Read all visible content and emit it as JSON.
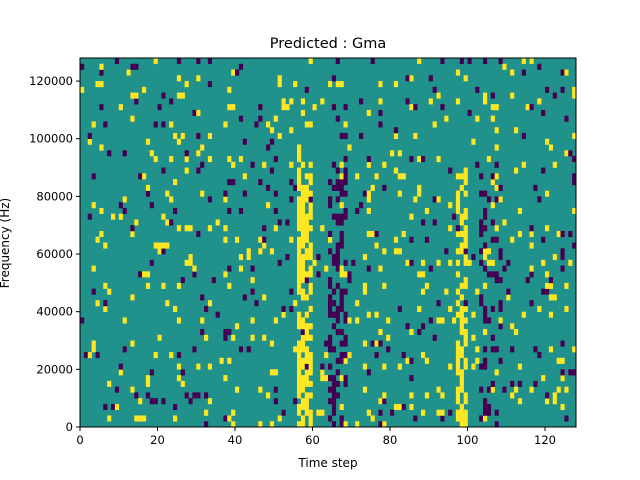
{
  "chart_data": {
    "type": "heatmap",
    "title": "Predicted : Gma",
    "xlabel": "Time step",
    "ylabel": "Frequency (Hz)",
    "xlim": [
      0,
      128
    ],
    "ylim": [
      0,
      128000
    ],
    "x_ticks": [
      {
        "value": 0,
        "label": "0"
      },
      {
        "value": 20,
        "label": "20"
      },
      {
        "value": 40,
        "label": "40"
      },
      {
        "value": 60,
        "label": "60"
      },
      {
        "value": 80,
        "label": "80"
      },
      {
        "value": 100,
        "label": "100"
      },
      {
        "value": 120,
        "label": "120"
      }
    ],
    "y_ticks": [
      {
        "value": 0,
        "label": "0"
      },
      {
        "value": 20000,
        "label": "20000"
      },
      {
        "value": 40000,
        "label": "40000"
      },
      {
        "value": 60000,
        "label": "60000"
      },
      {
        "value": 80000,
        "label": "80000"
      },
      {
        "value": 100000,
        "label": "100000"
      },
      {
        "value": 120000,
        "label": "120000"
      }
    ],
    "n_time_steps": 128,
    "n_freq_bins": 64,
    "values_note_levels": {
      "low": -1,
      "mid": 0,
      "high": 1
    },
    "colors": {
      "low": "#440154",
      "mid": "#21918c",
      "high": "#fde725"
    },
    "grid": false,
    "legend": "none"
  }
}
